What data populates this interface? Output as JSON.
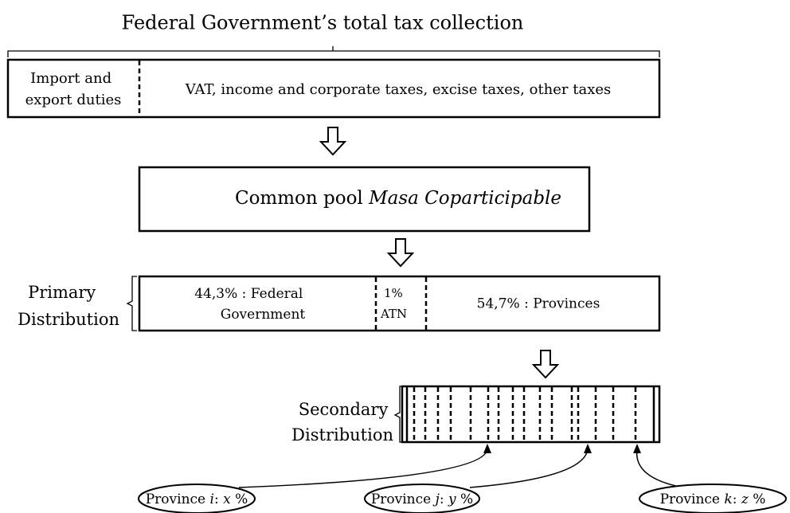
{
  "title": "Federal Government’s total tax collection",
  "collection": {
    "duties": [
      "Import and",
      "export duties"
    ],
    "taxes": "VAT, income and corporate taxes, excise taxes, other taxes"
  },
  "pool": {
    "label": "Common pool ",
    "name": "Masa Coparticipable"
  },
  "primary": {
    "label": [
      "Primary",
      "Distribution"
    ],
    "segments": [
      [
        "44,3% : Federal",
        "Government"
      ],
      [
        "1%",
        "ATN"
      ],
      [
        "54,7% : Provinces"
      ]
    ]
  },
  "secondary": {
    "label": [
      "Secondary",
      "Distribution"
    ]
  },
  "provinces": [
    [
      "Province ",
      "i",
      ": ",
      "x",
      " %"
    ],
    [
      "Province ",
      "j",
      ": ",
      "y",
      " %"
    ],
    [
      "Province ",
      "k",
      ": ",
      "z",
      " %"
    ]
  ]
}
